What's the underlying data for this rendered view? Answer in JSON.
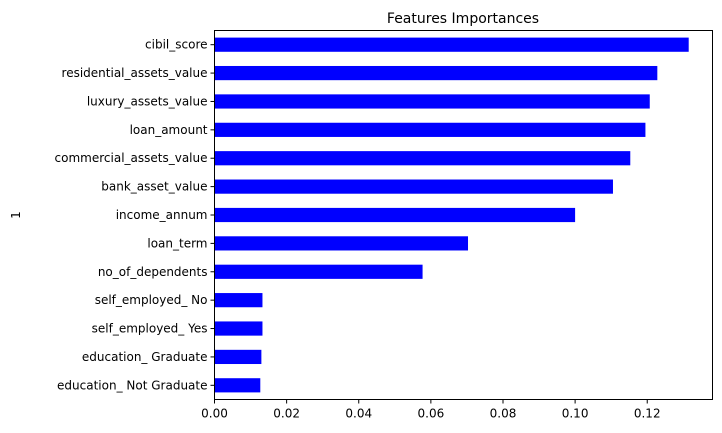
{
  "chart_data": {
    "type": "bar",
    "orientation": "horizontal",
    "title": "Features Importances",
    "xlabel": "",
    "ylabel": "1",
    "categories": [
      "cibil_score",
      "residential_assets_value",
      "luxury_assets_value",
      "loan_amount",
      "commercial_assets_value",
      "bank_asset_value",
      "income_annum",
      "loan_term",
      "no_of_dependents",
      "self_employed_ No",
      "self_employed_ Yes",
      "education_ Graduate",
      "education_ Not Graduate"
    ],
    "values": [
      0.1315,
      0.1228,
      0.1207,
      0.1195,
      0.1153,
      0.1105,
      0.1,
      0.0703,
      0.0577,
      0.0133,
      0.0133,
      0.013,
      0.0127
    ],
    "xlim": [
      0,
      0.1381
    ],
    "xticks": [
      "0.00",
      "0.02",
      "0.04",
      "0.06",
      "0.08",
      "0.10",
      "0.12"
    ],
    "xtick_values": [
      0,
      0.02,
      0.04,
      0.06,
      0.08,
      0.1,
      0.12
    ],
    "bar_color": "#0000ff",
    "grid": false,
    "legend": "none"
  }
}
